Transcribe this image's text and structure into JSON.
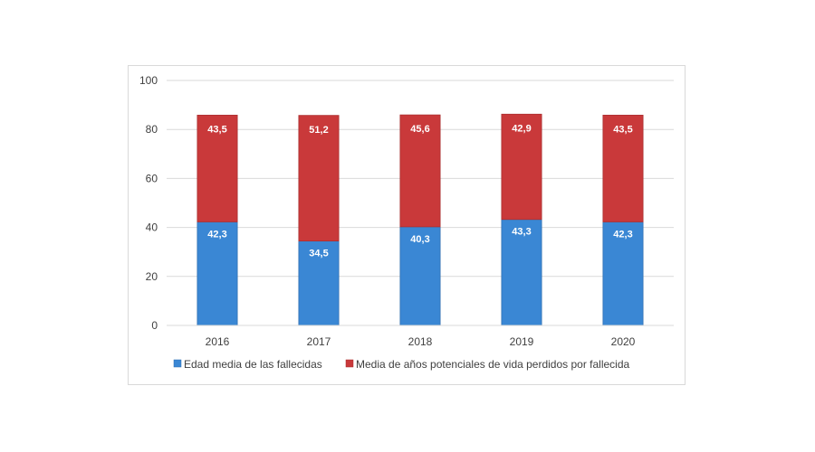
{
  "chart_data": {
    "type": "bar",
    "stacked": true,
    "categories": [
      "2016",
      "2017",
      "2018",
      "2019",
      "2020"
    ],
    "series": [
      {
        "name": "Edad media de las fallecidas",
        "values": [
          42.3,
          34.5,
          40.3,
          43.3,
          42.3
        ],
        "labels": [
          "42,3",
          "34,5",
          "40,3",
          "43,3",
          "42,3"
        ],
        "color": "#3a87d4"
      },
      {
        "name": "Media de años potenciales de vida perdidos por fallecida",
        "values": [
          43.5,
          51.2,
          45.6,
          42.9,
          43.5
        ],
        "labels": [
          "43,5",
          "51,2",
          "45,6",
          "42,9",
          "43,5"
        ],
        "color": "#c9393a"
      }
    ],
    "ylim": [
      0,
      100
    ],
    "yticks": [
      0,
      20,
      40,
      60,
      80,
      100
    ],
    "ytick_labels": [
      "0",
      "20",
      "40",
      "60",
      "80",
      "100"
    ],
    "grid": true,
    "legend_position": "bottom"
  }
}
